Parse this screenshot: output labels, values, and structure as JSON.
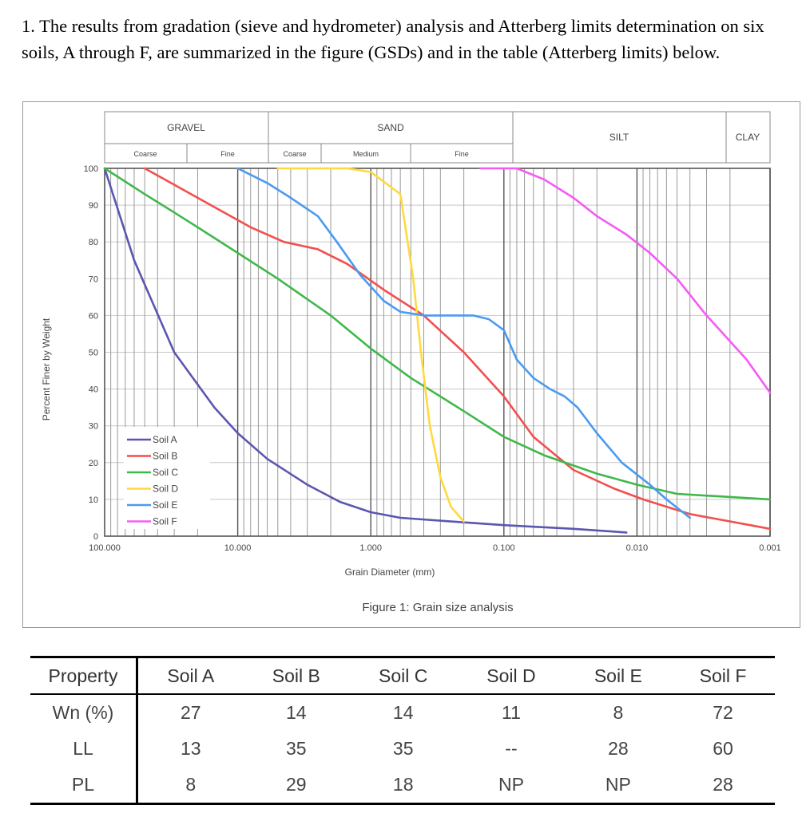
{
  "question": {
    "text": "1. The results from gradation (sieve and hydrometer) analysis and Atterberg limits determination on six soils, A through F, are summarized in the figure (GSDs) and in the table (Atterberg limits) below."
  },
  "chart_data": {
    "type": "line",
    "title": "",
    "caption": "Figure 1: Grain size analysis",
    "xlabel": "Grain Diameter (mm)",
    "ylabel": "Percent Finer by Weight",
    "x_scale": "log",
    "x_reversed": true,
    "xlim": [
      100,
      0.001
    ],
    "ylim": [
      0,
      100
    ],
    "x_tick_labels": [
      "100.000",
      "10.000",
      "1.000",
      "0.100",
      "0.010",
      "0.001"
    ],
    "y_tick_labels": [
      "0",
      "10",
      "20",
      "30",
      "40",
      "50",
      "60",
      "70",
      "80",
      "90",
      "100"
    ],
    "grid": true,
    "legend_position": "bottom-left",
    "classification": {
      "GRAVEL": [
        "Coarse",
        "Fine"
      ],
      "SAND": [
        "Coarse",
        "Medium",
        "Fine"
      ],
      "SILT": [],
      "CLAY": []
    },
    "classification_labels": {
      "gravel": "GRAVEL",
      "sand": "SAND",
      "silt": "SILT",
      "clay": "CLAY",
      "gravel_coarse": "Coarse",
      "gravel_fine": "Fine",
      "sand_coarse": "Coarse",
      "sand_medium": "Medium",
      "sand_fine": "Fine"
    },
    "series": [
      {
        "name": "Soil A",
        "color": "#5b56b0",
        "points": [
          [
            100,
            100
          ],
          [
            60,
            75
          ],
          [
            30,
            50
          ],
          [
            15,
            35
          ],
          [
            10,
            28
          ],
          [
            6,
            21
          ],
          [
            3,
            14
          ],
          [
            1.7,
            9.3
          ],
          [
            1,
            6.5
          ],
          [
            0.6,
            5
          ],
          [
            0.25,
            4
          ],
          [
            0.1,
            3
          ],
          [
            0.03,
            2
          ],
          [
            0.012,
            1
          ]
        ]
      },
      {
        "name": "Soil B",
        "color": "#f24f4f",
        "points": [
          [
            50,
            100
          ],
          [
            20,
            92
          ],
          [
            8,
            84
          ],
          [
            4.5,
            80
          ],
          [
            2.5,
            78
          ],
          [
            1.5,
            74
          ],
          [
            0.8,
            67
          ],
          [
            0.4,
            60
          ],
          [
            0.2,
            50
          ],
          [
            0.1,
            38
          ],
          [
            0.06,
            27
          ],
          [
            0.03,
            18
          ],
          [
            0.015,
            13
          ],
          [
            0.009,
            10
          ],
          [
            0.004,
            6
          ],
          [
            0.001,
            2
          ]
        ]
      },
      {
        "name": "Soil C",
        "color": "#3fb84a",
        "points": [
          [
            100,
            100
          ],
          [
            50,
            93
          ],
          [
            30,
            88
          ],
          [
            20,
            84
          ],
          [
            10,
            77
          ],
          [
            5,
            70
          ],
          [
            2,
            60
          ],
          [
            1,
            51
          ],
          [
            0.5,
            43
          ],
          [
            0.2,
            34
          ],
          [
            0.1,
            27
          ],
          [
            0.05,
            22
          ],
          [
            0.02,
            17
          ],
          [
            0.01,
            14
          ],
          [
            0.005,
            11.5
          ],
          [
            0.001,
            10
          ]
        ]
      },
      {
        "name": "Soil D",
        "color": "#ffd940",
        "points": [
          [
            5,
            100
          ],
          [
            1.5,
            100
          ],
          [
            1,
            99
          ],
          [
            0.6,
            93
          ],
          [
            0.48,
            70
          ],
          [
            0.42,
            50
          ],
          [
            0.36,
            30
          ],
          [
            0.3,
            16
          ],
          [
            0.25,
            8
          ],
          [
            0.2,
            4
          ]
        ]
      },
      {
        "name": "Soil E",
        "color": "#4a9af2",
        "points": [
          [
            10,
            100
          ],
          [
            6,
            96
          ],
          [
            4,
            92
          ],
          [
            2.5,
            87
          ],
          [
            1.8,
            80
          ],
          [
            1.2,
            71
          ],
          [
            0.8,
            64
          ],
          [
            0.6,
            61
          ],
          [
            0.4,
            60
          ],
          [
            0.25,
            60
          ],
          [
            0.17,
            60
          ],
          [
            0.13,
            59
          ],
          [
            0.1,
            56
          ],
          [
            0.08,
            48
          ],
          [
            0.06,
            43
          ],
          [
            0.045,
            40
          ],
          [
            0.035,
            38
          ],
          [
            0.028,
            35
          ],
          [
            0.02,
            28
          ],
          [
            0.013,
            20
          ],
          [
            0.008,
            14
          ],
          [
            0.006,
            10
          ],
          [
            0.004,
            5
          ]
        ]
      },
      {
        "name": "Soil F",
        "color": "#f55af5",
        "points": [
          [
            0.15,
            100
          ],
          [
            0.08,
            100
          ],
          [
            0.05,
            97
          ],
          [
            0.03,
            92
          ],
          [
            0.02,
            87
          ],
          [
            0.012,
            82
          ],
          [
            0.008,
            77
          ],
          [
            0.005,
            70
          ],
          [
            0.003,
            60
          ],
          [
            0.0015,
            48
          ],
          [
            0.001,
            39
          ]
        ]
      }
    ]
  },
  "table": {
    "headers": [
      "Property",
      "Soil A",
      "Soil B",
      "Soil C",
      "Soil D",
      "Soil E",
      "Soil F"
    ],
    "rows": [
      [
        "Wn (%)",
        "27",
        "14",
        "14",
        "11",
        "8",
        "72"
      ],
      [
        "LL",
        "13",
        "35",
        "35",
        "--",
        "28",
        "60"
      ],
      [
        "PL",
        "8",
        "29",
        "18",
        "NP",
        "NP",
        "28"
      ]
    ]
  }
}
